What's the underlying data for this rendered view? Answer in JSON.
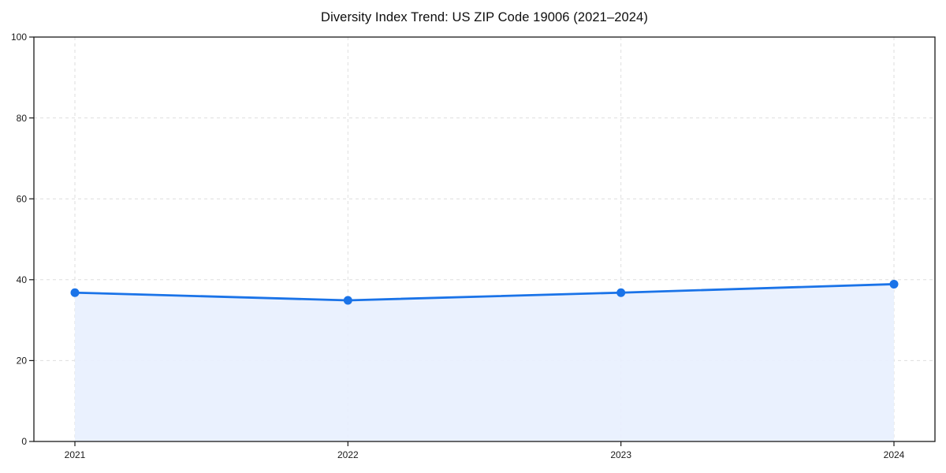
{
  "chart_data": {
    "type": "line",
    "title": "Diversity Index Trend: US ZIP Code 19006 (2021–2024)",
    "x": [
      2021,
      2022,
      2023,
      2024
    ],
    "series": [
      {
        "name": "Diversity Index",
        "values": [
          36.8,
          34.9,
          36.8,
          38.9
        ]
      }
    ],
    "xlabel": "",
    "ylabel": "",
    "ylim": [
      0,
      100
    ],
    "yticks": [
      0,
      20,
      40,
      60,
      80,
      100
    ],
    "grid": "dashed",
    "legend": "none",
    "area_fill": true,
    "colors": {
      "line": "#1a73e8",
      "marker": "#1a73e8",
      "fill": "#e8f0fe",
      "grid": "#dedede",
      "spine": "#1a1a1a",
      "tick_text": "#1a1a1a",
      "title_text": "#0d0d0d",
      "background": "#ffffff"
    }
  }
}
